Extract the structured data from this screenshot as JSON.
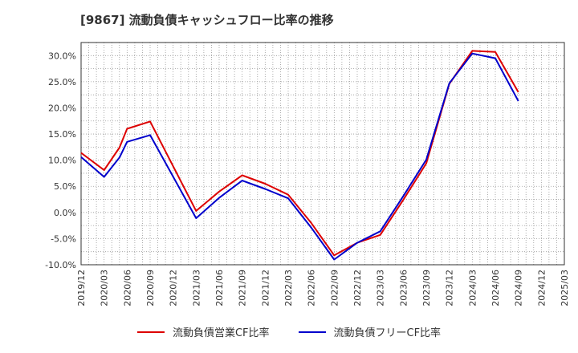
{
  "chart_data": {
    "type": "line",
    "title": "[9867]  流動負債キャッシュフロー比率の推移",
    "xlabel": "",
    "ylabel": "",
    "ylim": [
      -10,
      32.5
    ],
    "yticks": [
      -10,
      -5,
      0,
      5,
      10,
      15,
      20,
      25,
      30
    ],
    "ytick_labels": [
      "-10.0%",
      "-5.0%",
      "0.0%",
      "5.0%",
      "10.0%",
      "15.0%",
      "20.0%",
      "25.0%",
      "30.0%"
    ],
    "categories": [
      "2019/12",
      "2020/03",
      "2020/06",
      "2020/09",
      "2020/12",
      "2021/03",
      "2021/06",
      "2021/09",
      "2021/12",
      "2022/03",
      "2022/06",
      "2022/09",
      "2022/12",
      "2023/03",
      "2023/06",
      "2023/09",
      "2023/12",
      "2024/03",
      "2024/06",
      "2024/09",
      "2024/12",
      "2025/03"
    ],
    "x": [
      "2019/12",
      "2020/01",
      "2020/02",
      "2020/03",
      "2020/04",
      "2020/05",
      "2020/06",
      "2020/07",
      "2020/08",
      "2020/09",
      "2020/10",
      "2020/11",
      "2020/12",
      "2021/01",
      "2021/02",
      "2021/03",
      "2021/04",
      "2021/05",
      "2021/06",
      "2021/07",
      "2021/08",
      "2021/09",
      "2021/10",
      "2021/11",
      "2021/12",
      "2022/01",
      "2022/02",
      "2022/03",
      "2022/04",
      "2022/05",
      "2022/06",
      "2022/07",
      "2022/08",
      "2022/09",
      "2022/10",
      "2022/11",
      "2022/12",
      "2023/01",
      "2023/02",
      "2023/03",
      "2023/04",
      "2023/05",
      "2023/06",
      "2023/07",
      "2023/08",
      "2023/09",
      "2023/10",
      "2023/11",
      "2023/12",
      "2024/01",
      "2024/02",
      "2024/03",
      "2024/04",
      "2024/05",
      "2024/06",
      "2024/07",
      "2024/08",
      "2024/09",
      "2024/10",
      "2024/11",
      "2024/12",
      "2025/01",
      "2025/02",
      "2025/03"
    ],
    "series": [
      {
        "name": "流動負債営業CF比率",
        "color": "#dd0000",
        "points": [
          [
            "2019/12",
            11.4
          ],
          [
            "2020/03",
            8.1
          ],
          [
            "2020/05",
            12.4
          ],
          [
            "2020/06",
            16.0
          ],
          [
            "2020/09",
            17.4
          ],
          [
            "2021/03",
            0.3
          ],
          [
            "2021/06",
            4.0
          ],
          [
            "2021/09",
            7.1
          ],
          [
            "2021/12",
            5.5
          ],
          [
            "2022/03",
            3.4
          ],
          [
            "2022/06",
            -2.0
          ],
          [
            "2022/09",
            -8.2
          ],
          [
            "2022/12",
            -5.8
          ],
          [
            "2023/03",
            -4.3
          ],
          [
            "2023/06",
            2.4
          ],
          [
            "2023/09",
            9.4
          ],
          [
            "2023/12",
            24.6
          ],
          [
            "2024/03",
            30.9
          ],
          [
            "2024/06",
            30.7
          ],
          [
            "2024/09",
            23.0
          ]
        ]
      },
      {
        "name": "流動負債フリーCF比率",
        "color": "#0000cc",
        "points": [
          [
            "2019/12",
            10.6
          ],
          [
            "2020/03",
            6.8
          ],
          [
            "2020/05",
            10.5
          ],
          [
            "2020/06",
            13.5
          ],
          [
            "2020/09",
            14.8
          ],
          [
            "2021/03",
            -1.1
          ],
          [
            "2021/06",
            2.8
          ],
          [
            "2021/09",
            6.1
          ],
          [
            "2021/12",
            4.5
          ],
          [
            "2022/03",
            2.7
          ],
          [
            "2022/06",
            -2.9
          ],
          [
            "2022/09",
            -9.0
          ],
          [
            "2022/12",
            -5.8
          ],
          [
            "2023/03",
            -3.6
          ],
          [
            "2023/06",
            3.1
          ],
          [
            "2023/09",
            10.1
          ],
          [
            "2023/12",
            24.7
          ],
          [
            "2024/03",
            30.4
          ],
          [
            "2024/06",
            29.5
          ],
          [
            "2024/09",
            21.3
          ]
        ]
      }
    ],
    "grid": true,
    "legend": "bottom-center"
  }
}
